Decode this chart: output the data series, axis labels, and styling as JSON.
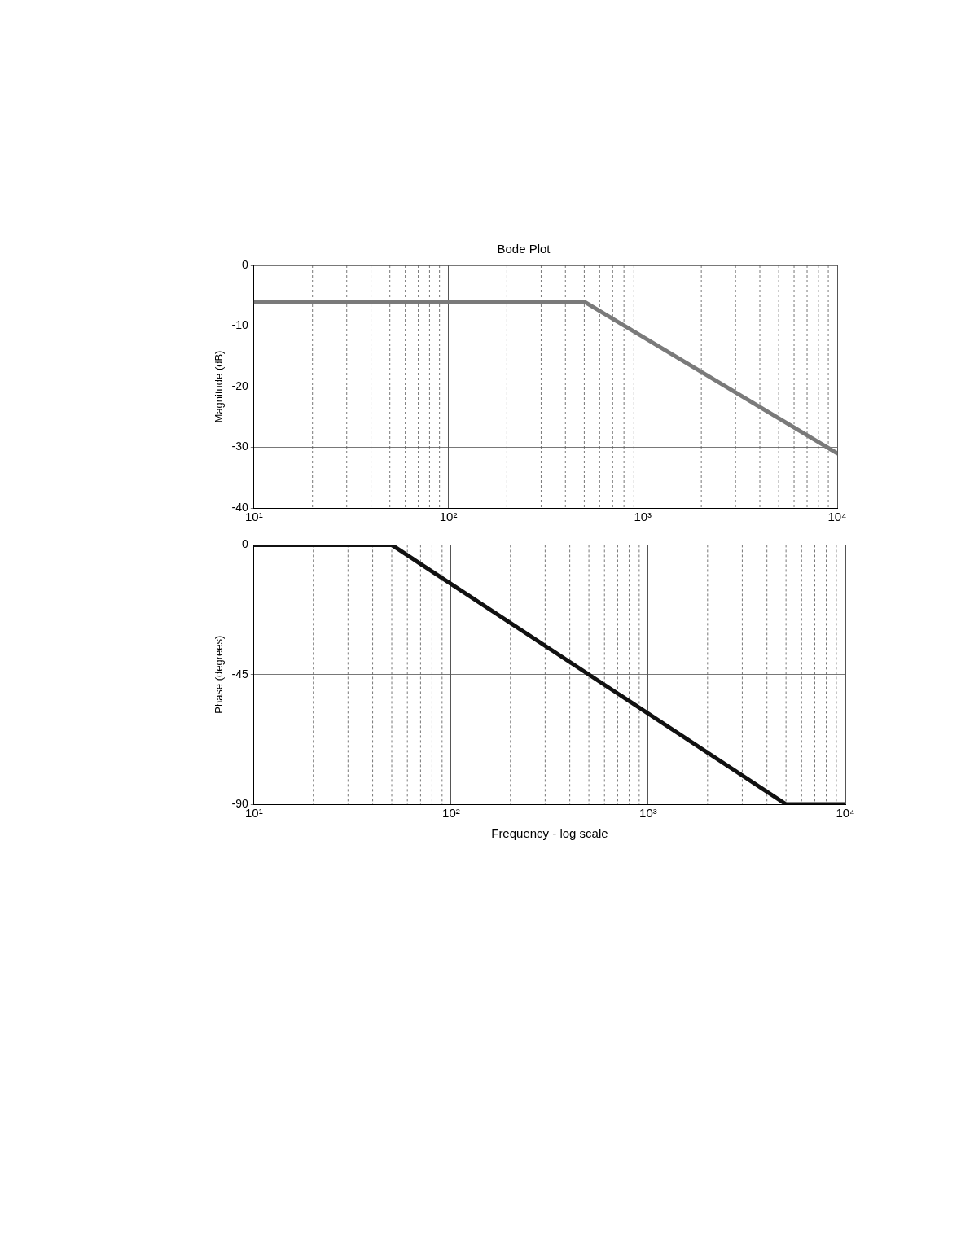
{
  "chart_data": [
    {
      "type": "line",
      "title": "Bode Plot",
      "ylabel": "Magnitude (dB)",
      "log": "x",
      "grid": true,
      "marker": "none",
      "line_style": "solid",
      "xlim": [
        10,
        10000
      ],
      "xticks": [
        {
          "value": 10,
          "label": "10¹"
        },
        {
          "value": 100,
          "label": "10²"
        },
        {
          "value": 1000,
          "label": "10³"
        },
        {
          "value": 10000,
          "label": "10⁴"
        }
      ],
      "ylim": [
        -40,
        0
      ],
      "yticks": [
        -40,
        -30,
        -20,
        -10,
        0
      ],
      "series": [
        {
          "color": "#7a7a7a",
          "x": [
            10,
            500,
            10000
          ],
          "values": [
            -6,
            -6,
            -31
          ]
        }
      ]
    },
    {
      "type": "line",
      "xlabel": "Frequency - log scale",
      "ylabel": "Phase (degrees)",
      "log": "x",
      "grid": true,
      "marker": "none",
      "line_style": "solid",
      "xlim": [
        10,
        10000
      ],
      "xticks": [
        {
          "value": 10,
          "label": "10¹"
        },
        {
          "value": 100,
          "label": "10²"
        },
        {
          "value": 1000,
          "label": "10³"
        },
        {
          "value": 10000,
          "label": "10⁴"
        }
      ],
      "ylim": [
        -90,
        0
      ],
      "yticks": [
        -90,
        -45,
        0
      ],
      "series": [
        {
          "color": "#111111",
          "x": [
            10,
            50,
            5000,
            10000
          ],
          "values": [
            0,
            0,
            -90,
            -90
          ]
        }
      ]
    }
  ]
}
